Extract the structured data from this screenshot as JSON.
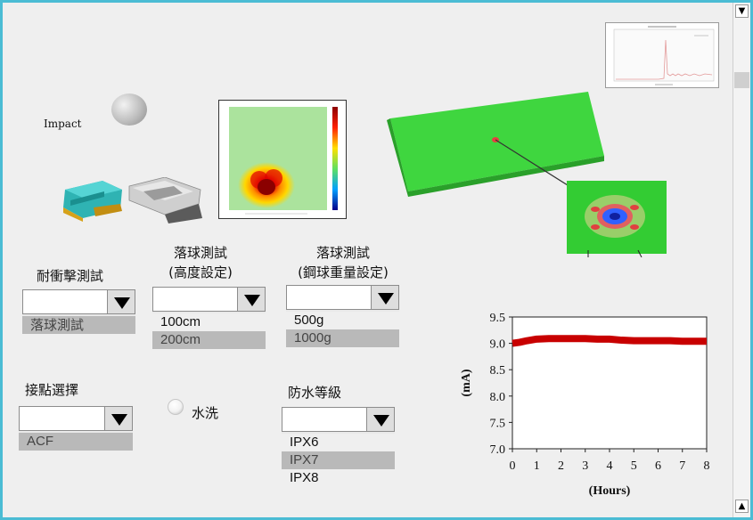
{
  "impact_label": "Impact",
  "groups": {
    "impact_test": {
      "title": "耐衝擊測試",
      "selected_value": "",
      "options": [
        {
          "label": "落球測試",
          "selected": true
        }
      ]
    },
    "drop_height": {
      "title_line1": "落球測試",
      "title_line2": "(高度設定)",
      "selected_value": "",
      "options": [
        {
          "label": "100cm",
          "selected": false
        },
        {
          "label": "200cm",
          "selected": true
        }
      ]
    },
    "ball_weight": {
      "title_line1": "落球測試",
      "title_line2": "(鋼球重量設定)",
      "selected_value": "",
      "options": [
        {
          "label": "500g",
          "selected": false
        },
        {
          "label": "1000g",
          "selected": true
        }
      ]
    },
    "contact_point": {
      "title": "接點選擇",
      "selected_value": "",
      "options": [
        {
          "label": "ACF",
          "selected": true
        }
      ]
    },
    "waterproof": {
      "title": "防水等級",
      "selected_value": "",
      "options": [
        {
          "label": "IPX6",
          "selected": false
        },
        {
          "label": "IPX7",
          "selected": true
        },
        {
          "label": "IPX8",
          "selected": false
        }
      ]
    }
  },
  "wash_label": "水洗",
  "icons": {
    "scroll_up": "▲",
    "scroll_down": "▼"
  },
  "chart_data": {
    "type": "line",
    "xlabel": "(Hours)",
    "ylabel": "(mA)",
    "xlim": [
      0,
      8
    ],
    "ylim": [
      7.0,
      9.5
    ],
    "xticks": [
      "0",
      "1",
      "2",
      "3",
      "4",
      "5",
      "6",
      "7",
      "8"
    ],
    "yticks": [
      "7.0",
      "7.5",
      "8.0",
      "8.5",
      "9.0",
      "9.5"
    ],
    "grid": false,
    "series": [
      {
        "color": "#c80000",
        "x": [
          0,
          0.3,
          0.6,
          1,
          1.5,
          2,
          2.5,
          3,
          3.5,
          4,
          4.5,
          5,
          5.5,
          6,
          6.5,
          7,
          7.5,
          8
        ],
        "y": [
          9.0,
          9.02,
          9.05,
          9.08,
          9.09,
          9.09,
          9.09,
          9.09,
          9.08,
          9.08,
          9.06,
          9.05,
          9.05,
          9.05,
          9.05,
          9.04,
          9.04,
          9.04
        ]
      }
    ]
  }
}
